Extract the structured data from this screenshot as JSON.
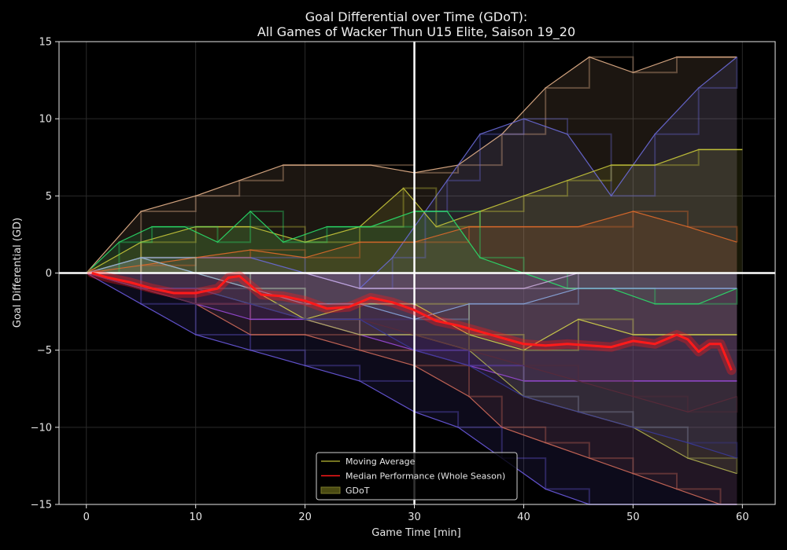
{
  "chart_data": {
    "type": "line",
    "title": "Goal Differential over Time (GDoT):",
    "subtitle": "All Games of Wacker Thun U15 Elite, Saison 19_20",
    "xlabel": "Game Time [min]",
    "ylabel": "Goal Differential (GD)",
    "xlim": [
      -2.5,
      63
    ],
    "ylim": [
      -15,
      15
    ],
    "xticks": [
      0,
      10,
      20,
      30,
      40,
      50,
      60
    ],
    "yticks": [
      -15,
      -10,
      -5,
      0,
      5,
      10,
      15
    ],
    "xtick_labels": [
      "0",
      "10",
      "20",
      "30",
      "40",
      "50",
      "60"
    ],
    "ytick_labels": [
      "−15",
      "−10",
      "−5",
      "0",
      "5",
      "10",
      "15"
    ],
    "grid": true,
    "background": "#000000",
    "reference_lines": {
      "x": 30,
      "y": 0,
      "color": "#ffffff"
    },
    "legend": {
      "placement": "lower-center",
      "entries": [
        {
          "label": "Moving Average",
          "color": "#9a9a2a",
          "kind": "line"
        },
        {
          "label": "Median Performance (Whole Season)",
          "color": "#ff1a1a",
          "kind": "line"
        },
        {
          "label": "GDoT",
          "color": "#4a4a12",
          "kind": "patch"
        }
      ]
    },
    "series": [
      {
        "color": "#e8b48c",
        "x": [
          0,
          5,
          10,
          14,
          18,
          22,
          26,
          30,
          34,
          38,
          42,
          46,
          50,
          54,
          58,
          59.5
        ],
        "y": [
          0,
          4,
          5,
          6,
          7,
          7,
          7,
          6.5,
          7,
          9,
          12,
          14,
          13,
          14,
          14,
          14
        ]
      },
      {
        "color": "#6a6ad8",
        "x": [
          0,
          5,
          10,
          15,
          20,
          25,
          28,
          31,
          33,
          36,
          40,
          44,
          48,
          52,
          56,
          59.5
        ],
        "y": [
          0,
          1,
          1,
          1,
          0,
          -1,
          1,
          4,
          6,
          9,
          10,
          9,
          5,
          9,
          12,
          14
        ]
      },
      {
        "color": "#c8c83a",
        "x": [
          0,
          5,
          10,
          15,
          20,
          25,
          29,
          32,
          36,
          40,
          44,
          48,
          52,
          56,
          60
        ],
        "y": [
          0,
          2,
          3,
          3,
          2,
          3,
          5.5,
          3,
          4,
          5,
          6,
          7,
          7,
          8,
          8
        ]
      },
      {
        "color": "#e06a2a",
        "x": [
          0,
          5,
          10,
          15,
          20,
          25,
          30,
          35,
          40,
          45,
          50,
          55,
          59.5
        ],
        "y": [
          0,
          0.5,
          1,
          1.5,
          1,
          2,
          2,
          3,
          3,
          3,
          4,
          3,
          2
        ]
      },
      {
        "color": "#2ae06a",
        "x": [
          0,
          3,
          6,
          9,
          12,
          15,
          18,
          22,
          26,
          30,
          33,
          36,
          40,
          44,
          48,
          52,
          56,
          59.5
        ],
        "y": [
          0,
          2,
          3,
          3,
          2,
          4,
          2,
          3,
          3,
          4,
          4,
          1,
          0,
          -1,
          -1,
          -2,
          -2,
          -1
        ]
      },
      {
        "color": "#c8a8d8",
        "x": [
          0,
          5,
          10,
          15,
          20,
          25,
          30,
          35,
          40,
          45,
          50,
          55,
          59.5
        ],
        "y": [
          0,
          0,
          0,
          0,
          0,
          -1,
          -1,
          -1,
          -1,
          0,
          0,
          0,
          0
        ]
      },
      {
        "color": "#d0d0d0",
        "x": [
          0,
          10,
          20,
          30,
          40,
          50,
          59.5
        ],
        "y": [
          0,
          0,
          0,
          0,
          0,
          0,
          0
        ]
      },
      {
        "color": "#d4d44a",
        "x": [
          0,
          5,
          10,
          15,
          20,
          25,
          30,
          35,
          40,
          45,
          50,
          55,
          59.5
        ],
        "y": [
          0,
          1,
          0,
          -1,
          -3,
          -2,
          -2,
          -4,
          -5,
          -3,
          -4,
          -4,
          -4
        ]
      },
      {
        "color": "#8aa8e0",
        "x": [
          0,
          5,
          10,
          15,
          20,
          25,
          30,
          35,
          40,
          45,
          50,
          55,
          59.5
        ],
        "y": [
          0,
          1,
          0,
          -1,
          -2,
          -2,
          -3,
          -2,
          -2,
          -1,
          -1,
          -1,
          -1
        ]
      },
      {
        "color": "#d06a5a",
        "x": [
          0,
          5,
          10,
          15,
          20,
          25,
          30,
          35,
          38,
          42,
          46,
          50,
          54,
          58,
          59.5
        ],
        "y": [
          0,
          -1,
          -2,
          -4,
          -4,
          -5,
          -6,
          -8,
          -10,
          -11,
          -12,
          -13,
          -14,
          -15,
          -15
        ]
      },
      {
        "color": "#9a4ad8",
        "x": [
          0,
          5,
          10,
          15,
          20,
          25,
          30,
          35,
          40,
          45,
          50,
          55,
          59.5
        ],
        "y": [
          0,
          -1,
          -2,
          -3,
          -3,
          -4,
          -5,
          -6,
          -7,
          -7,
          -7,
          -7,
          -7
        ]
      },
      {
        "color": "#6a5ae0",
        "x": [
          0,
          5,
          10,
          15,
          20,
          25,
          30,
          34,
          38,
          42,
          46,
          50,
          54,
          58,
          59.5
        ],
        "y": [
          0,
          -2,
          -4,
          -5,
          -6,
          -7,
          -9,
          -10,
          -12,
          -14,
          -15,
          -15,
          -15,
          -15,
          -15
        ]
      },
      {
        "color": "#b0b050",
        "x": [
          0,
          5,
          10,
          15,
          20,
          25,
          30,
          35,
          40,
          45,
          50,
          55,
          59.5
        ],
        "y": [
          0,
          -1,
          -1,
          -2,
          -3,
          -4,
          -4,
          -5,
          -8,
          -9,
          -10,
          -12,
          -13
        ]
      },
      {
        "color": "#5a2a3a",
        "x": [
          0,
          5,
          10,
          15,
          20,
          25,
          30,
          35,
          40,
          45,
          50,
          55,
          59.5
        ],
        "y": [
          0,
          -1,
          -2,
          -2,
          -3,
          -3,
          -4,
          -5,
          -6,
          -7,
          -8,
          -9,
          -8
        ]
      },
      {
        "color": "#3a3a9a",
        "x": [
          0,
          5,
          10,
          15,
          20,
          25,
          30,
          35,
          40,
          45,
          50,
          55,
          59.5
        ],
        "y": [
          0,
          -1,
          -1,
          -2,
          -3,
          -3,
          -5,
          -6,
          -8,
          -9,
          -10,
          -11,
          -12
        ]
      }
    ],
    "median": {
      "name": "Median Performance (Whole Season)",
      "color": "#ff1a1a",
      "x": [
        0.5,
        2,
        4,
        6,
        8,
        10,
        12,
        13,
        14,
        15,
        16,
        18,
        20,
        22,
        24,
        26,
        28,
        30,
        32,
        34,
        36,
        38,
        40,
        42,
        44,
        46,
        48,
        50,
        52,
        54,
        55,
        56,
        57,
        58,
        59
      ],
      "y": [
        0,
        -0.3,
        -0.6,
        -1,
        -1.3,
        -1.3,
        -1,
        -0.3,
        -0.2,
        -0.8,
        -1.4,
        -1.5,
        -1.8,
        -2.3,
        -2.2,
        -1.6,
        -1.9,
        -2.4,
        -3.1,
        -3.4,
        -3.8,
        -4.2,
        -4.6,
        -4.7,
        -4.6,
        -4.7,
        -4.8,
        -4.4,
        -4.6,
        -4,
        -4.3,
        -5.1,
        -4.6,
        -4.6,
        -6.3
      ]
    }
  }
}
